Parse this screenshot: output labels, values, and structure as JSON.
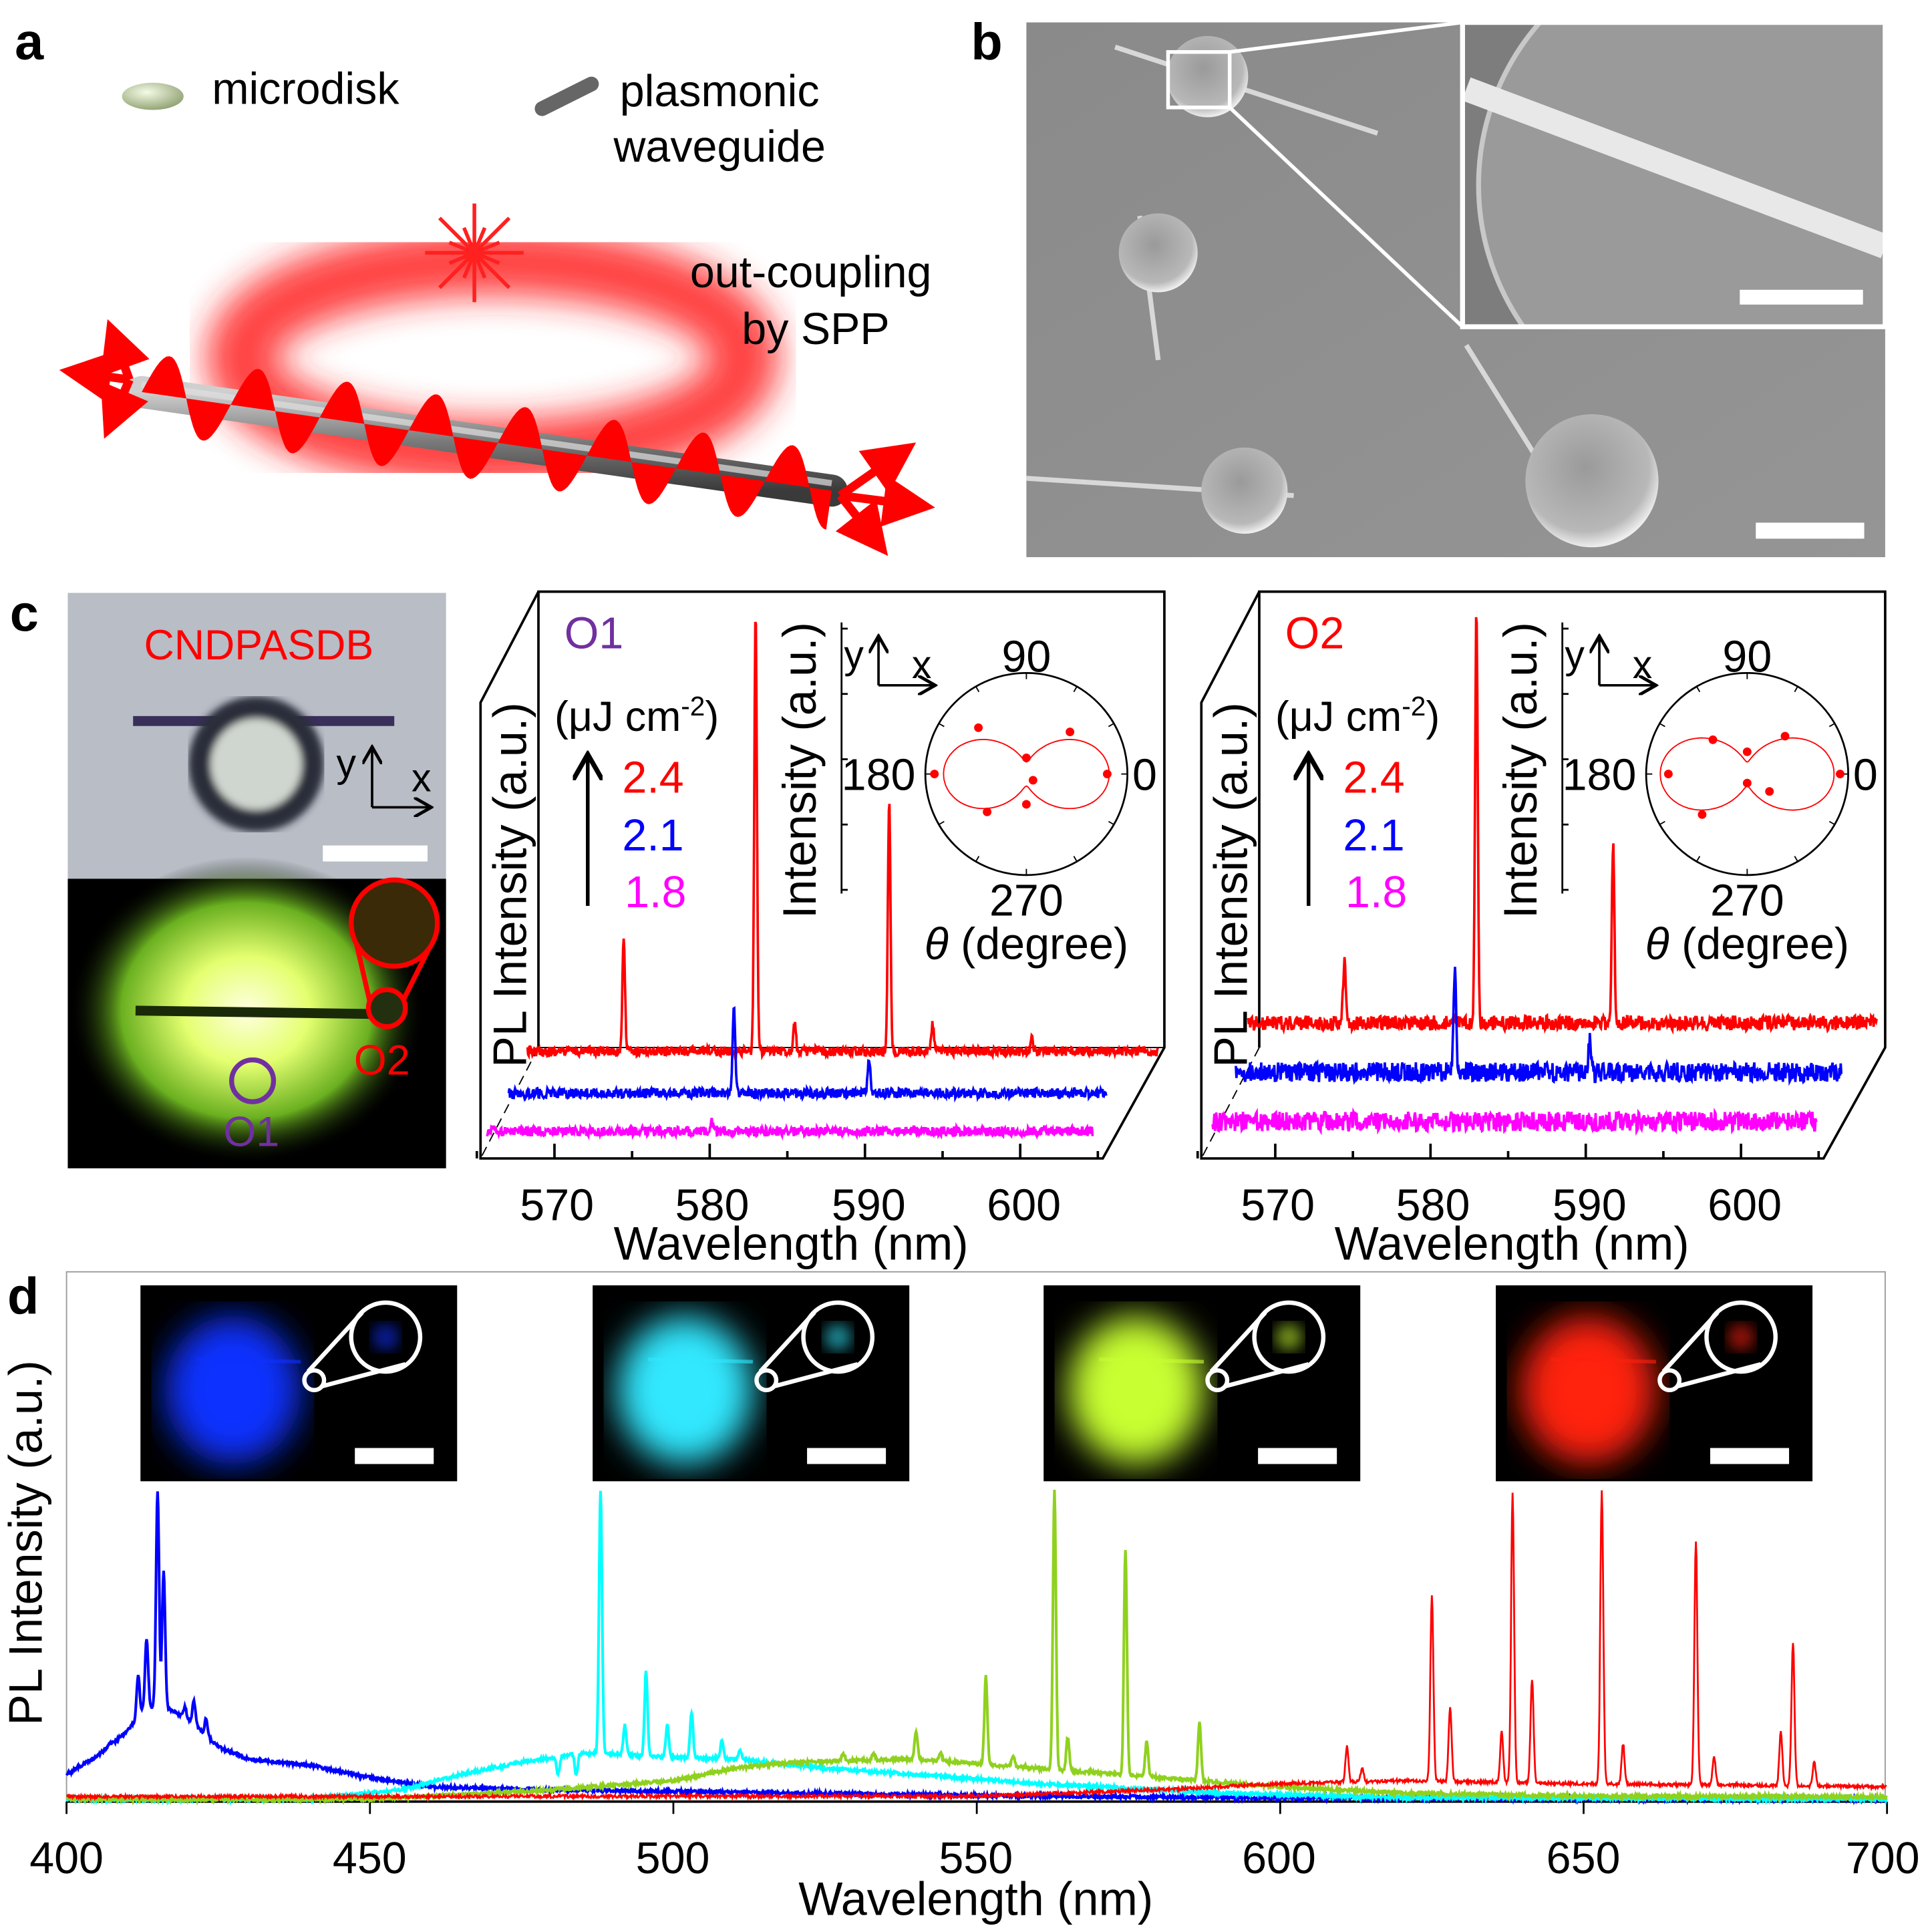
{
  "panel_labels": {
    "a": "a",
    "b": "b",
    "c": "c",
    "d": "d"
  },
  "panel_a": {
    "legend": [
      {
        "label": "microdisk",
        "icon": "microdisk-icon"
      },
      {
        "label_line1": "plasmonic",
        "label_line2": "waveguide",
        "icon": "plasmonic-waveguide-icon"
      }
    ],
    "annotation_line1": "out-coupling",
    "annotation_line2": "by SPP",
    "colors": {
      "light": "#ff0000",
      "waveguide": "#808080"
    }
  },
  "panel_b": {
    "description_colors": {
      "sem_background": "#8c8c8c",
      "inset_border": "#ffffff"
    }
  },
  "panel_c": {
    "sample_label": "CNDPASDB",
    "axis_y": "y",
    "axis_x": "x",
    "spot_o1": "O1",
    "spot_o2": "O2",
    "colors": {
      "o1": "#7030a0",
      "o2": "#ff0000"
    }
  },
  "chart_data": [
    {
      "type": "line",
      "title": "O1",
      "xlabel": "Wavelength (nm)",
      "ylabel": "PL Intensity (a.u.)",
      "xlim": [
        565,
        605
      ],
      "xticks": [
        570,
        580,
        590,
        600
      ],
      "legend_unit_prefix": "(μJ cm",
      "legend_unit_exp": "-2",
      "legend_unit_suffix": ")",
      "series": [
        {
          "name": "2.4",
          "color": "#ff0000",
          "peaks": [
            [
              574.3,
              0.25
            ],
            [
              582.8,
              1.0
            ],
            [
              585.3,
              0.07
            ],
            [
              591.4,
              0.57
            ],
            [
              594.2,
              0.06
            ],
            [
              600.6,
              0.03
            ]
          ]
        },
        {
          "name": "2.1",
          "color": "#0000ff",
          "peaks": [
            [
              581.4,
              0.2
            ],
            [
              590.1,
              0.08
            ]
          ]
        },
        {
          "name": "1.8",
          "color": "#ff00ff",
          "peaks": [
            [
              580.0,
              0.02
            ]
          ]
        }
      ],
      "inset": {
        "type": "polar",
        "ylabel": "Intensity (a.u.)",
        "axis_y": "y",
        "axis_x": "x",
        "angle_ticks": {
          "t0": "0",
          "t90": "90",
          "t180": "180",
          "t270": "270"
        },
        "theta_symbol": "θ",
        "xlabel_rest": " (degree)",
        "points": [
          [
            0,
            0.8
          ],
          [
            44,
            0.6
          ],
          [
            90,
            0.16
          ],
          [
            136,
            0.66
          ],
          [
            180,
            0.91
          ],
          [
            224,
            0.54
          ],
          [
            270,
            0.3
          ],
          [
            317,
            0.09
          ]
        ],
        "fit": {
          "min": 0.12,
          "max": 0.82
        },
        "color": "#ff0000"
      }
    },
    {
      "type": "line",
      "title": "O2",
      "xlabel": "Wavelength (nm)",
      "ylabel": "PL Intensity (a.u.)",
      "xlim": [
        565,
        605
      ],
      "xticks": [
        570,
        580,
        590,
        600
      ],
      "legend_unit_prefix": "(μJ cm",
      "legend_unit_exp": "-2",
      "legend_unit_suffix": ")",
      "series": [
        {
          "name": "2.4",
          "color": "#ff0000",
          "peaks": [
            [
              574.3,
              0.16
            ],
            [
              582.8,
              1.0
            ],
            [
              591.6,
              0.43
            ]
          ]
        },
        {
          "name": "2.1",
          "color": "#0000ff",
          "peaks": [
            [
              581.4,
              0.25
            ],
            [
              590.1,
              0.08
            ]
          ]
        },
        {
          "name": "1.8",
          "color": "#ff00ff",
          "peaks": []
        }
      ],
      "inset": {
        "type": "polar",
        "ylabel": "Intensity (a.u.)",
        "axis_y": "y",
        "axis_x": "x",
        "angle_ticks": {
          "t0": "0",
          "t90": "90",
          "t180": "180",
          "t270": "270"
        },
        "theta_symbol": "θ",
        "xlabel_rest": " (degree)",
        "points": [
          [
            0,
            0.92
          ],
          [
            45,
            0.53
          ],
          [
            90,
            0.22
          ],
          [
            135,
            0.48
          ],
          [
            180,
            0.78
          ],
          [
            222,
            0.6
          ],
          [
            270,
            0.09
          ],
          [
            322,
            0.28
          ]
        ],
        "fit": {
          "min": 0.12,
          "max": 0.86
        },
        "color": "#ff0000"
      }
    },
    {
      "type": "line",
      "xlabel": "Wavelength (nm)",
      "ylabel": "PL Intensity (a.u.)",
      "xlim": [
        400,
        700
      ],
      "xticks": [
        400,
        450,
        500,
        550,
        600,
        650,
        700
      ],
      "series": [
        {
          "color": "#0000ff",
          "background": [
            [
              400,
              0.08
            ],
            [
              405,
              0.14
            ],
            [
              410,
              0.22
            ],
            [
              413,
              0.3
            ],
            [
              416,
              0.3
            ],
            [
              420,
              0.26
            ],
            [
              425,
              0.17
            ],
            [
              430,
              0.13
            ],
            [
              440,
              0.11
            ],
            [
              450,
              0.07
            ],
            [
              460,
              0.04
            ],
            [
              480,
              0.03
            ],
            [
              500,
              0.025
            ],
            [
              550,
              0.012
            ],
            [
              600,
              0.004
            ],
            [
              700,
              0
            ]
          ],
          "peaks": [
            [
              415.0,
              1.0
            ],
            [
              416.0,
              0.74
            ],
            [
              413.2,
              0.52
            ],
            [
              411.8,
              0.4
            ],
            [
              407.0,
              0.18
            ],
            [
              419.5,
              0.3
            ],
            [
              421.0,
              0.32
            ],
            [
              423.0,
              0.26
            ]
          ]
        },
        {
          "color": "#00ffff",
          "background": [
            [
              400,
              0
            ],
            [
              440,
              0
            ],
            [
              455,
              0.03
            ],
            [
              465,
              0.08
            ],
            [
              475,
              0.12
            ],
            [
              485,
              0.15
            ],
            [
              495,
              0.14
            ],
            [
              510,
              0.13
            ],
            [
              525,
              0.1
            ],
            [
              540,
              0.08
            ],
            [
              560,
              0.05
            ],
            [
              570,
              0.04
            ],
            [
              590,
              0.02
            ],
            [
              620,
              0.005
            ],
            [
              700,
              0
            ]
          ],
          "peaks": [
            [
              488.0,
              1.0
            ],
            [
              495.5,
              0.42
            ],
            [
              492.0,
              0.24
            ],
            [
              499.0,
              0.24
            ],
            [
              503.0,
              0.28
            ],
            [
              508.0,
              0.19
            ],
            [
              511.0,
              0.16
            ],
            [
              481.0,
              0.08
            ],
            [
              484.0,
              0.08
            ]
          ]
        },
        {
          "color": "#8fd11e",
          "background": [
            [
              400,
              0
            ],
            [
              450,
              0
            ],
            [
              480,
              0.03
            ],
            [
              500,
              0.06
            ],
            [
              510,
              0.1
            ],
            [
              520,
              0.12
            ],
            [
              540,
              0.13
            ],
            [
              560,
              0.1
            ],
            [
              580,
              0.07
            ],
            [
              600,
              0.04
            ],
            [
              620,
              0.02
            ],
            [
              650,
              0.01
            ],
            [
              700,
              0.008
            ]
          ],
          "peaks": [
            [
              562.8,
              1.0
            ],
            [
              574.5,
              0.81
            ],
            [
              551.5,
              0.4
            ],
            [
              540.0,
              0.22
            ],
            [
              565.0,
              0.2
            ],
            [
              578.0,
              0.19
            ],
            [
              586.7,
              0.25
            ],
            [
              528.0,
              0.15
            ],
            [
              533.0,
              0.15
            ],
            [
              544.0,
              0.15
            ],
            [
              556.0,
              0.14
            ]
          ]
        },
        {
          "color": "#ff0000",
          "background": [
            [
              400,
              0.008
            ],
            [
              550,
              0.01
            ],
            [
              580,
              0.03
            ],
            [
              600,
              0.05
            ],
            [
              620,
              0.06
            ],
            [
              650,
              0.05
            ],
            [
              700,
              0.04
            ]
          ],
          "peaks": [
            [
              611.0,
              0.17
            ],
            [
              613.5,
              0.1
            ],
            [
              625.0,
              0.66
            ],
            [
              628.0,
              0.3
            ],
            [
              636.5,
              0.22
            ],
            [
              638.3,
              0.99
            ],
            [
              641.5,
              0.39
            ],
            [
              653.0,
              1.0
            ],
            [
              656.5,
              0.18
            ],
            [
              668.5,
              0.84
            ],
            [
              671.5,
              0.14
            ],
            [
              682.5,
              0.22
            ],
            [
              684.5,
              0.51
            ],
            [
              688.0,
              0.12
            ]
          ]
        }
      ],
      "insets": [
        {
          "color": "#1030ff"
        },
        {
          "color": "#30e8ff"
        },
        {
          "color": "#c8ff30"
        },
        {
          "color": "#ff2010"
        }
      ]
    }
  ]
}
